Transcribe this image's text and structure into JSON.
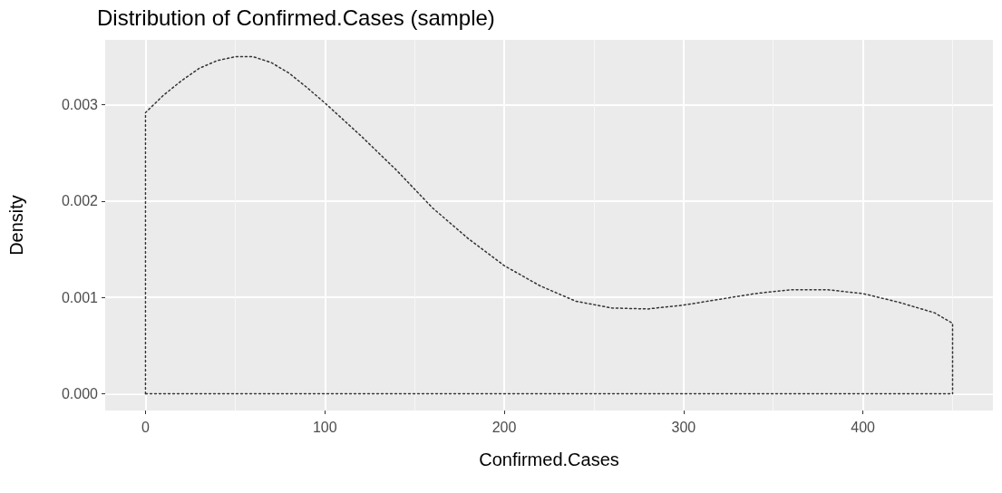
{
  "chart_data": {
    "type": "line",
    "title": "Distribution of Confirmed.Cases (sample)",
    "xlabel": "Confirmed.Cases",
    "ylabel": "Density",
    "series": [
      {
        "color": "#333333",
        "x": [
          0,
          0,
          10,
          20,
          30,
          40,
          50,
          60,
          70,
          80,
          90,
          100,
          120,
          140,
          160,
          180,
          200,
          220,
          240,
          260,
          280,
          300,
          320,
          340,
          360,
          380,
          400,
          420,
          440,
          450,
          450
        ],
        "values": [
          0,
          0.00292,
          0.0031,
          0.00325,
          0.00338,
          0.00346,
          0.0035,
          0.0035,
          0.00344,
          0.00333,
          0.00318,
          0.00302,
          0.00268,
          0.00232,
          0.00193,
          0.00161,
          0.00133,
          0.00112,
          0.00096,
          0.00089,
          0.00088,
          0.00092,
          0.00098,
          0.00104,
          0.00108,
          0.00108,
          0.00104,
          0.00095,
          0.00084,
          0.00073,
          0
        ]
      },
      {
        "color": "#333333",
        "x": [
          0,
          450
        ],
        "values": [
          0,
          0
        ]
      }
    ],
    "xlim": [
      -22.5,
      472.5
    ],
    "xticks": [
      0,
      100,
      200,
      300,
      400
    ],
    "ylim": [
      -0.000175,
      0.003675
    ],
    "yticks": [
      {
        "value": 0,
        "label": "0.000"
      },
      {
        "value": 0.001,
        "label": "0.001"
      },
      {
        "value": 0.002,
        "label": "0.002"
      },
      {
        "value": 0.003,
        "label": "0.003"
      }
    ],
    "grid": true,
    "marker": "none",
    "line_style": "dotted"
  }
}
